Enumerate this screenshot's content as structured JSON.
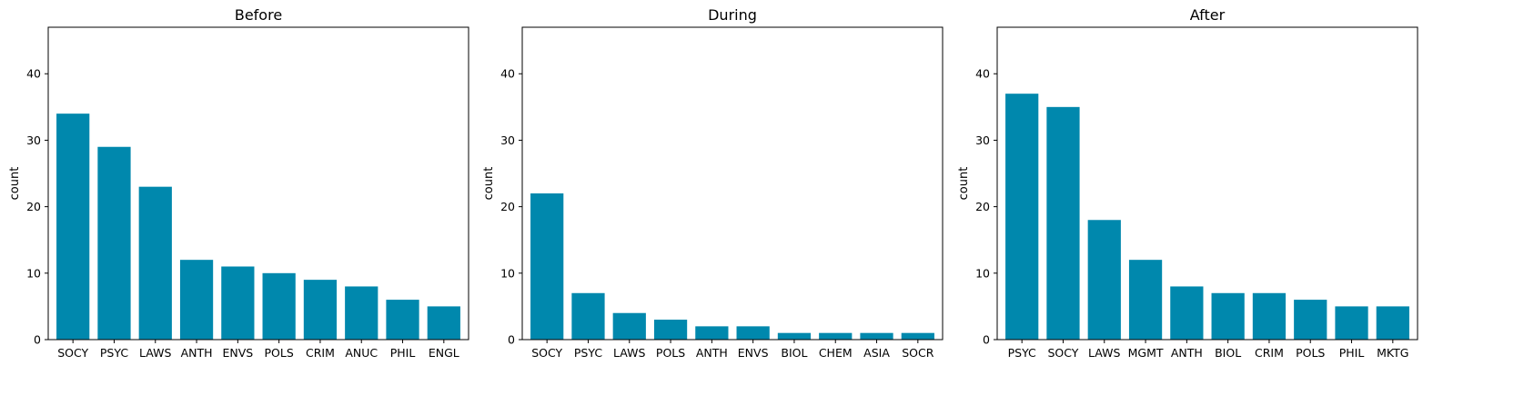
{
  "chart_data": [
    {
      "type": "bar",
      "title": "Before",
      "xlabel": "",
      "ylabel": "count",
      "ylim": [
        0,
        47
      ],
      "yticks": [
        0,
        10,
        20,
        30,
        40
      ],
      "categories": [
        "SOCY",
        "PSYC",
        "LAWS",
        "ANTH",
        "ENVS",
        "POLS",
        "CRIM",
        "ANUC",
        "PHIL",
        "ENGL"
      ],
      "values": [
        34,
        29,
        23,
        12,
        11,
        10,
        9,
        8,
        6,
        5
      ],
      "color": "#0088ad",
      "grid": false
    },
    {
      "type": "bar",
      "title": "During",
      "xlabel": "",
      "ylabel": "count",
      "ylim": [
        0,
        47
      ],
      "yticks": [
        0,
        10,
        20,
        30,
        40
      ],
      "categories": [
        "SOCY",
        "PSYC",
        "LAWS",
        "POLS",
        "ANTH",
        "ENVS",
        "BIOL",
        "CHEM",
        "ASIA",
        "SOCR"
      ],
      "values": [
        22,
        7,
        4,
        3,
        2,
        2,
        1,
        1,
        1,
        1
      ],
      "color": "#0088ad",
      "grid": false
    },
    {
      "type": "bar",
      "title": "After",
      "xlabel": "",
      "ylabel": "count",
      "ylim": [
        0,
        47
      ],
      "yticks": [
        0,
        10,
        20,
        30,
        40
      ],
      "categories": [
        "PSYC",
        "SOCY",
        "LAWS",
        "MGMT",
        "ANTH",
        "BIOL",
        "CRIM",
        "POLS",
        "PHIL",
        "MKTG"
      ],
      "values": [
        37,
        35,
        18,
        12,
        8,
        7,
        7,
        6,
        5,
        5
      ],
      "color": "#0088ad",
      "grid": false
    }
  ]
}
